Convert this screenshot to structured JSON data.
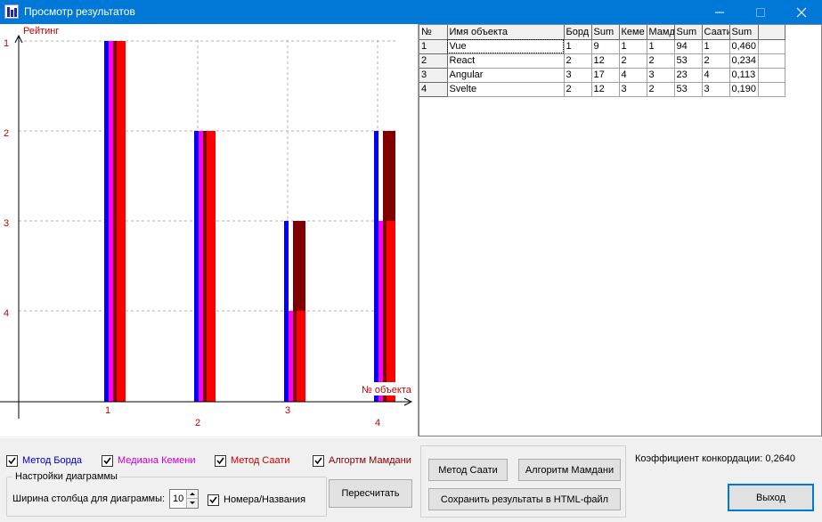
{
  "window": {
    "title": "Просмотр результатов"
  },
  "chart": {
    "y_axis_label": "Рейтинг",
    "x_axis_label": "№ объекта",
    "colors": {
      "borda": "#0000ff",
      "kemeny": "#ff00ff",
      "mamdani": "#800000",
      "saaty": "#ff0000",
      "axis_text": "#c00000"
    }
  },
  "chart_data": {
    "type": "bar",
    "title": "",
    "xlabel": "№ объекта",
    "ylabel": "Рейтинг",
    "categories": [
      "1",
      "2",
      "3",
      "4"
    ],
    "y_ticks": [
      "1",
      "2",
      "3",
      "4"
    ],
    "ylim": [
      1,
      5
    ],
    "y_inverted": true,
    "grid": true,
    "series": [
      {
        "name": "Метод Борда",
        "color": "#0000ff",
        "values": [
          1,
          2,
          3,
          2
        ]
      },
      {
        "name": "Медиана Кемени",
        "color": "#ff00ff",
        "values": [
          1,
          2,
          4,
          3
        ]
      },
      {
        "name": "Алгортм Мамдани",
        "color": "#800000",
        "values": [
          1,
          2,
          3,
          2
        ]
      },
      {
        "name": "Метод Саати",
        "color": "#ff0000",
        "values": [
          1,
          2,
          4,
          3
        ]
      }
    ]
  },
  "grid": {
    "columns": [
      "№",
      "Имя объекта",
      "Борд",
      "Sum",
      "Кеме",
      "Мамд",
      "Sum",
      "Саати",
      "Sum"
    ],
    "rows": [
      [
        "1",
        "Vue",
        "1",
        "9",
        "1",
        "1",
        "94",
        "1",
        "0,460"
      ],
      [
        "2",
        "React",
        "2",
        "12",
        "2",
        "2",
        "53",
        "2",
        "0,234"
      ],
      [
        "3",
        "Angular",
        "3",
        "17",
        "4",
        "3",
        "23",
        "4",
        "0,113"
      ],
      [
        "4",
        "Svelte",
        "2",
        "12",
        "3",
        "2",
        "53",
        "3",
        "0,190"
      ]
    ]
  },
  "controls": {
    "chk_borda": "Метод Борда",
    "chk_kemeny": "Медиана Кемени",
    "chk_saaty": "Метод Саати",
    "chk_mamdani": "Алгортм Мамдани",
    "settings_group": "Настройки диаграммы",
    "width_label": "Ширина столбца для диаграммы:",
    "width_value": "10",
    "chk_numbers": "Номера/Названия",
    "btn_recalc": "Пересчитать",
    "btn_saaty": "Метод Саати",
    "btn_mamdani": "Алгоритм Мамдани",
    "btn_save_html": "Сохранить результаты в HTML-файл",
    "concordance": "Коэффициент конкордации: 0,2640",
    "btn_exit": "Выход"
  }
}
